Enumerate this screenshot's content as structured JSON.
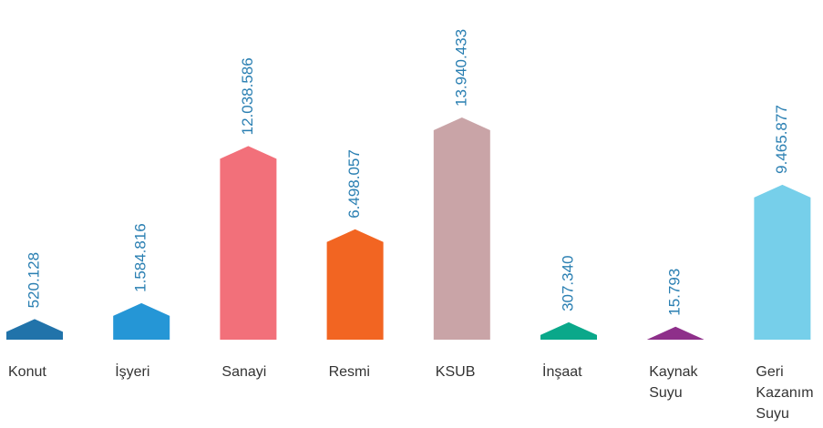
{
  "chart_data": {
    "type": "bar",
    "categories": [
      "Konut",
      "İşyeri",
      "Sanayi",
      "Resmi",
      "KSUB",
      "İnşaat",
      "Kaynak Suyu",
      "Geri Kazanım Suyu"
    ],
    "values": [
      520128,
      1584816,
      12038586,
      6498057,
      13940433,
      307340,
      15793,
      9465877
    ],
    "value_labels": [
      "520.128",
      "1.584.816",
      "12.038.586",
      "6.498.057",
      "13.940.433",
      "307.340",
      "15.793",
      "9.465.877"
    ],
    "colors": [
      "#2173aa",
      "#2596d6",
      "#f2707a",
      "#f26522",
      "#c9a4a7",
      "#0aa88a",
      "#8e2f8a",
      "#76cfea"
    ],
    "value_label_color": "#2a7fb2"
  }
}
